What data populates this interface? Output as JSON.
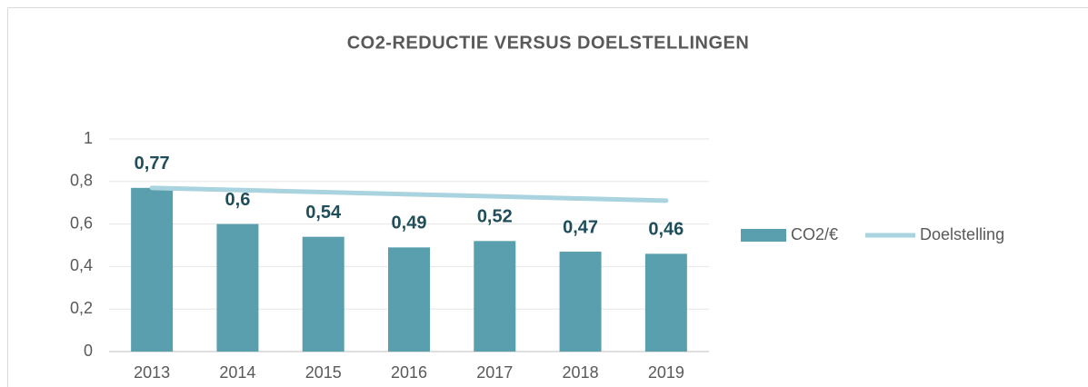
{
  "chart_data": {
    "type": "bar",
    "title": "CO2-REDUCTIE VERSUS DOELSTELLINGEN",
    "categories": [
      "2013",
      "2014",
      "2015",
      "2016",
      "2017",
      "2018",
      "2019"
    ],
    "series": [
      {
        "name": "CO2/€",
        "type": "bar",
        "color": "#5a9fae",
        "values": [
          0.77,
          0.6,
          0.54,
          0.49,
          0.52,
          0.47,
          0.46
        ],
        "value_labels": [
          "0,77",
          "0,6",
          "0,54",
          "0,49",
          "0,52",
          "0,47",
          "0,46"
        ]
      },
      {
        "name": "Doelstelling",
        "type": "line",
        "color": "#a9d3df",
        "values": [
          0.77,
          0.76,
          0.75,
          0.74,
          0.73,
          0.72,
          0.71
        ]
      }
    ],
    "ylim": [
      0,
      1
    ],
    "yticks": [
      0,
      {
        "value": 0.2,
        "label": "0,2"
      },
      {
        "value": 0.4,
        "label": "0,4"
      },
      {
        "value": 0.6,
        "label": "0,6"
      },
      {
        "value": 0.8,
        "label": "0,8"
      },
      1
    ],
    "grid": true,
    "legend": "right"
  }
}
